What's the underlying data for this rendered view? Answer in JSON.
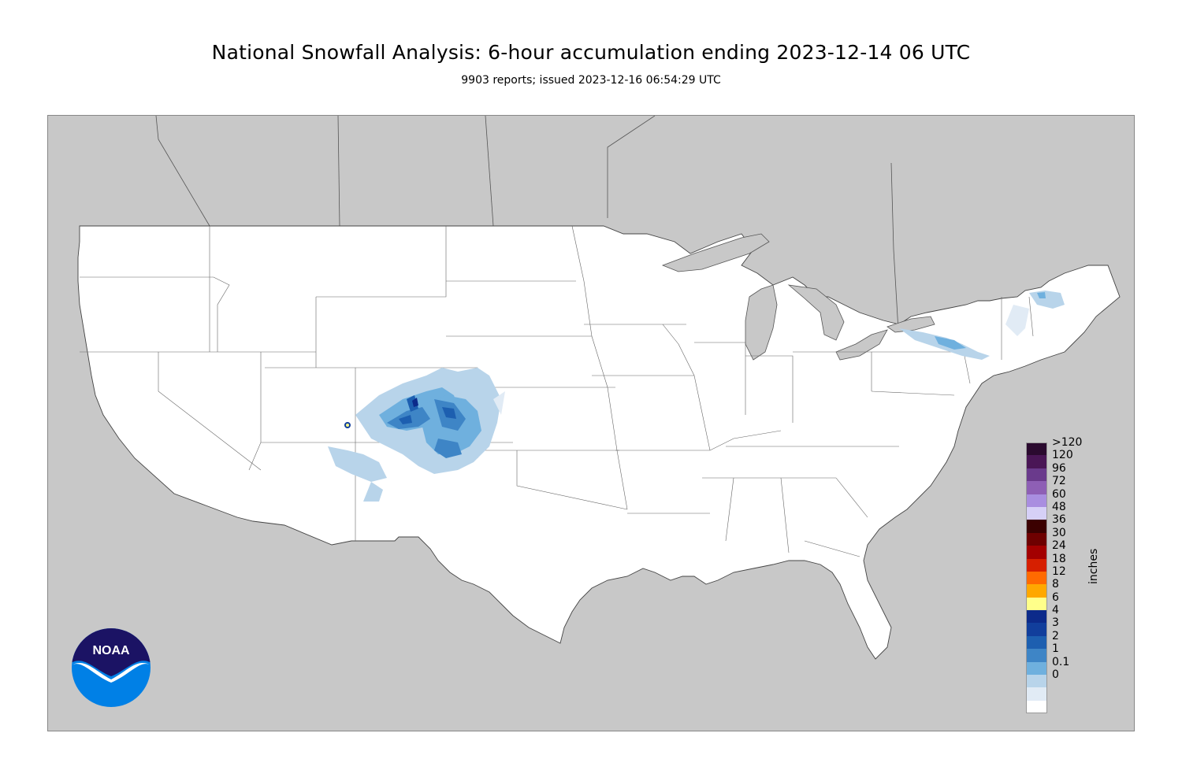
{
  "header": {
    "title": "National Snowfall Analysis: 6-hour accumulation ending 2023-12-14 06 UTC",
    "subtitle": "9903 reports; issued 2023-12-16 06:54:29 UTC"
  },
  "legend": {
    "units": "inches",
    "levels": [
      {
        "label": ">120",
        "color": "#2b0a2f"
      },
      {
        "label": "120",
        "color": "#4a1656"
      },
      {
        "label": "96",
        "color": "#6a3a8c"
      },
      {
        "label": "72",
        "color": "#8e5fb5"
      },
      {
        "label": "60",
        "color": "#a98ee0"
      },
      {
        "label": "48",
        "color": "#d6d0f7"
      },
      {
        "label": "36",
        "color": "#3b0000"
      },
      {
        "label": "30",
        "color": "#6e0000"
      },
      {
        "label": "24",
        "color": "#a30000"
      },
      {
        "label": "18",
        "color": "#d61f00"
      },
      {
        "label": "12",
        "color": "#ff6a00"
      },
      {
        "label": "8",
        "color": "#ffa800"
      },
      {
        "label": "6",
        "color": "#ffff8a"
      },
      {
        "label": "4",
        "color": "#0c2a8a"
      },
      {
        "label": "3",
        "color": "#113e9c"
      },
      {
        "label": "2",
        "color": "#1d5fb0"
      },
      {
        "label": "1",
        "color": "#3e85c6"
      },
      {
        "label": "0.1",
        "color": "#6fb0de"
      },
      {
        "label": "0",
        "color": "#b8d4ea"
      },
      {
        "label": "",
        "color": "#e1ebf5"
      },
      {
        "label": "",
        "color": "#ffffff"
      }
    ]
  },
  "logo": {
    "text": "NOAA"
  },
  "colors": {
    "outside_land": "#c8c8c8",
    "us_land": "#ffffff",
    "border": "#555555"
  }
}
